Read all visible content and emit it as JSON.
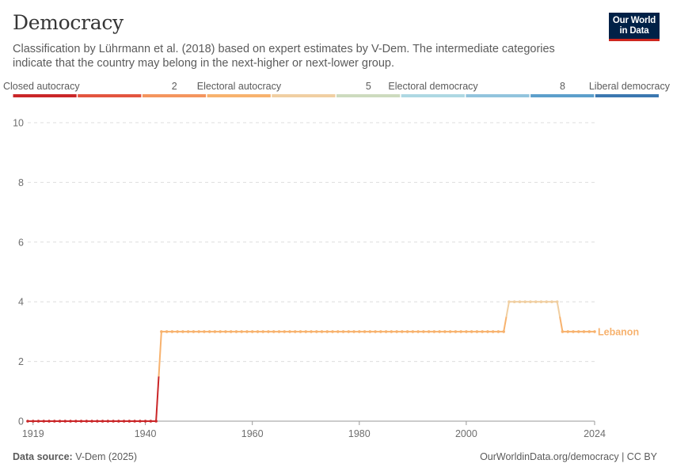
{
  "header": {
    "title": "Democracy",
    "subtitle": "Classification by Lührmann et al. (2018) based on expert estimates by V-Dem. The intermediate categories indicate that the country may belong in the next-higher or next-lower group."
  },
  "logo": {
    "line1": "Our World",
    "line2": "in Data"
  },
  "legend": {
    "labels": [
      {
        "text": "Closed autocracy",
        "value": 0
      },
      {
        "text": "2",
        "value": 2
      },
      {
        "text": "Electoral autocracy",
        "value": 3
      },
      {
        "text": "5",
        "value": 5
      },
      {
        "text": "Electoral democracy",
        "value": 6
      },
      {
        "text": "8",
        "value": 8
      },
      {
        "text": "Liberal democracy",
        "value": 9
      }
    ],
    "colors": [
      "#ca2628",
      "#e3553f",
      "#f4955e",
      "#f7b26e",
      "#f0cfa2",
      "#cddbbf",
      "#aed8e3",
      "#92c4dd",
      "#5c9fcb",
      "#3b78b0"
    ]
  },
  "chart_data": {
    "type": "line",
    "series": [
      {
        "name": "Lebanon",
        "x": [
          1918,
          1919,
          1920,
          1921,
          1922,
          1923,
          1924,
          1925,
          1926,
          1927,
          1928,
          1929,
          1930,
          1931,
          1932,
          1933,
          1934,
          1935,
          1936,
          1937,
          1938,
          1939,
          1940,
          1941,
          1942,
          1943,
          1944,
          1945,
          1946,
          1947,
          1948,
          1949,
          1950,
          1951,
          1952,
          1953,
          1954,
          1955,
          1956,
          1957,
          1958,
          1959,
          1960,
          1961,
          1962,
          1963,
          1964,
          1965,
          1966,
          1967,
          1968,
          1969,
          1970,
          1971,
          1972,
          1973,
          1974,
          1975,
          1976,
          1977,
          1978,
          1979,
          1980,
          1981,
          1982,
          1983,
          1984,
          1985,
          1986,
          1987,
          1988,
          1989,
          1990,
          1991,
          1992,
          1993,
          1994,
          1995,
          1996,
          1997,
          1998,
          1999,
          2000,
          2001,
          2002,
          2003,
          2004,
          2005,
          2006,
          2007,
          2008,
          2009,
          2010,
          2011,
          2012,
          2013,
          2014,
          2015,
          2016,
          2017,
          2018,
          2019,
          2020,
          2021,
          2022,
          2023,
          2024
        ],
        "y": [
          0,
          0,
          0,
          0,
          0,
          0,
          0,
          0,
          0,
          0,
          0,
          0,
          0,
          0,
          0,
          0,
          0,
          0,
          0,
          0,
          0,
          0,
          0,
          0,
          0,
          3,
          3,
          3,
          3,
          3,
          3,
          3,
          3,
          3,
          3,
          3,
          3,
          3,
          3,
          3,
          3,
          3,
          3,
          3,
          3,
          3,
          3,
          3,
          3,
          3,
          3,
          3,
          3,
          3,
          3,
          3,
          3,
          3,
          3,
          3,
          3,
          3,
          3,
          3,
          3,
          3,
          3,
          3,
          3,
          3,
          3,
          3,
          3,
          3,
          3,
          3,
          3,
          3,
          3,
          3,
          3,
          3,
          3,
          3,
          3,
          3,
          3,
          3,
          3,
          3,
          4,
          4,
          4,
          4,
          4,
          4,
          4,
          4,
          4,
          4,
          3,
          3,
          3,
          3,
          3,
          3,
          3
        ]
      }
    ],
    "xlim": [
      1918,
      2024
    ],
    "ylim": [
      0,
      10
    ],
    "y_ticks": [
      0,
      2,
      4,
      6,
      8,
      10
    ],
    "x_ticks": [
      1919,
      1940,
      1960,
      1980,
      2000,
      2024
    ],
    "grid": "horizontal dashed",
    "legend_placement": "top"
  },
  "footer": {
    "source_label": "Data source:",
    "source_value": "V-Dem (2025)",
    "credit": "OurWorldinData.org/democracy | CC BY"
  }
}
